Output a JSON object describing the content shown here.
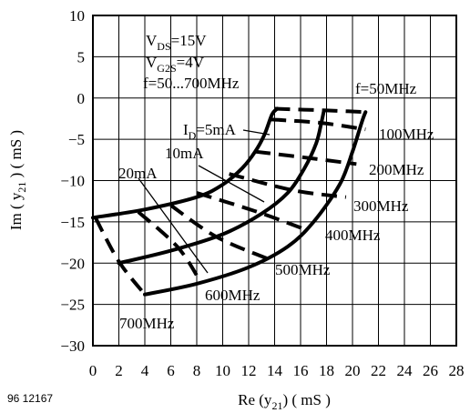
{
  "chart_data": {
    "type": "line",
    "figure_code": "96 12167",
    "x_axis": {
      "label_prefix": "Re (y",
      "label_sub": "21",
      "label_suffix": ")   ( mS )",
      "range": [
        0,
        28
      ],
      "ticks": [
        0,
        2,
        4,
        6,
        8,
        10,
        12,
        14,
        16,
        18,
        20,
        22,
        24,
        26,
        28
      ]
    },
    "y_axis": {
      "label_prefix": "Im ( y",
      "label_sub": "21",
      "label_suffix": " )   ( mS )",
      "range": [
        -30,
        10
      ],
      "ticks": [
        10,
        5,
        0,
        -5,
        -10,
        -15,
        -20,
        -25,
        -30
      ]
    },
    "grid": true,
    "conditions": [
      {
        "main": "V",
        "sub": "DS",
        "rest": "=15V"
      },
      {
        "main": "V",
        "sub": "G2S",
        "rest": "=4V"
      },
      {
        "main": "f=50...700MHz",
        "sub": "",
        "rest": ""
      }
    ],
    "current_curves": [
      {
        "label_main": "I",
        "label_sub": "D",
        "label_rest": "=5mA",
        "style": "solid",
        "points": [
          [
            0,
            -14.5
          ],
          [
            4,
            -13.5
          ],
          [
            8,
            -12
          ],
          [
            10,
            -10.5
          ],
          [
            11.5,
            -8.5
          ],
          [
            12.5,
            -6.5
          ],
          [
            13.2,
            -4.5
          ],
          [
            13.8,
            -2
          ],
          [
            14.2,
            -1.3
          ]
        ]
      },
      {
        "label_main": "",
        "label_sub": "",
        "label_rest": "10mA",
        "style": "solid",
        "points": [
          [
            2,
            -20
          ],
          [
            6,
            -18.5
          ],
          [
            10,
            -16.5
          ],
          [
            13,
            -14
          ],
          [
            15,
            -11.5
          ],
          [
            16.3,
            -8.5
          ],
          [
            17.2,
            -5.5
          ],
          [
            17.6,
            -3
          ],
          [
            17.8,
            -1.5
          ]
        ]
      },
      {
        "label_main": "",
        "label_sub": "",
        "label_rest": "20mA",
        "style": "solid",
        "points": [
          [
            4,
            -23.8
          ],
          [
            8,
            -22.5
          ],
          [
            12,
            -20.5
          ],
          [
            15,
            -18
          ],
          [
            17,
            -15
          ],
          [
            19,
            -10.5
          ],
          [
            20,
            -6.5
          ],
          [
            20.7,
            -3
          ],
          [
            21,
            -1.7
          ]
        ]
      }
    ],
    "frequency_lines": [
      {
        "label": "f=50MHz",
        "points": [
          [
            14,
            -1.3
          ],
          [
            18,
            -1.5
          ],
          [
            21,
            -1.7
          ]
        ]
      },
      {
        "label": "100MHz",
        "points": [
          [
            13.7,
            -2.6
          ],
          [
            17.5,
            -3.0
          ],
          [
            21,
            -3.8
          ]
        ]
      },
      {
        "label": "200MHz",
        "points": [
          [
            12.5,
            -6.5
          ],
          [
            16.8,
            -7.3
          ],
          [
            20.3,
            -8.0
          ]
        ]
      },
      {
        "label": "300MHz",
        "points": [
          [
            10.5,
            -9.2
          ],
          [
            15.5,
            -11.2
          ],
          [
            19.5,
            -12.0
          ]
        ]
      },
      {
        "label": "400MHz",
        "points": [
          [
            8.0,
            -11.5
          ],
          [
            12.5,
            -13.7
          ],
          [
            16.5,
            -16.0
          ]
        ]
      },
      {
        "label": "500MHz",
        "points": [
          [
            6.0,
            -13.0
          ],
          [
            9.5,
            -16.8
          ],
          [
            13.5,
            -19.5
          ]
        ]
      },
      {
        "label": "600MHz",
        "points": [
          [
            3.5,
            -13.8
          ],
          [
            6.5,
            -18.0
          ],
          [
            8.2,
            -22.0
          ]
        ]
      },
      {
        "label": "700MHz",
        "points": [
          [
            0.2,
            -14.5
          ],
          [
            2.0,
            -19.8
          ],
          [
            4.0,
            -23.8
          ]
        ]
      }
    ]
  }
}
